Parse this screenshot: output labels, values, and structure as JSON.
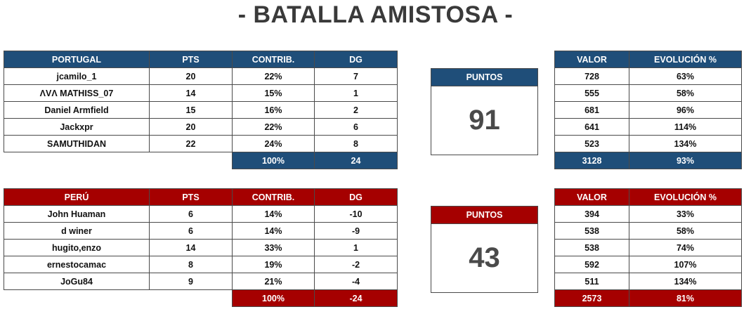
{
  "title": "- BATALLA AMISTOSA -",
  "colors": {
    "portugal": "#1f4e79",
    "peru": "#a50000"
  },
  "portugal": {
    "headers": [
      "PORTUGAL",
      "PTS",
      "CONTRIB.",
      "DG"
    ],
    "rows": [
      [
        "jcamilo_1",
        "20",
        "22%",
        "7"
      ],
      [
        "ΛVΛ MATHISS_07",
        "14",
        "15%",
        "1"
      ],
      [
        "Daniel Armfield",
        "15",
        "16%",
        "2"
      ],
      [
        "Jackxpr",
        "20",
        "22%",
        "6"
      ],
      [
        "SAMUTHIDAN",
        "22",
        "24%",
        "8"
      ]
    ],
    "totals": [
      "100%",
      "24"
    ],
    "points_label": "PUNTOS",
    "points": "91",
    "stats_headers": [
      "VALOR",
      "EVOLUCIÓN %"
    ],
    "stats_rows": [
      [
        "728",
        "63%"
      ],
      [
        "555",
        "58%"
      ],
      [
        "681",
        "96%"
      ],
      [
        "641",
        "114%"
      ],
      [
        "523",
        "134%"
      ]
    ],
    "stats_totals": [
      "3128",
      "93%"
    ]
  },
  "peru": {
    "headers": [
      "PERÚ",
      "PTS",
      "CONTRIB.",
      "DG"
    ],
    "rows": [
      [
        "John Huaman",
        "6",
        "14%",
        "-10"
      ],
      [
        "d winer",
        "6",
        "14%",
        "-9"
      ],
      [
        "hugito,enzo",
        "14",
        "33%",
        "1"
      ],
      [
        "ernestocamac",
        "8",
        "19%",
        "-2"
      ],
      [
        "JoGu84",
        "9",
        "21%",
        "-4"
      ]
    ],
    "totals": [
      "100%",
      "-24"
    ],
    "points_label": "PUNTOS",
    "points": "43",
    "stats_headers": [
      "VALOR",
      "EVOLUCIÓN %"
    ],
    "stats_rows": [
      [
        "394",
        "33%"
      ],
      [
        "538",
        "58%"
      ],
      [
        "538",
        "74%"
      ],
      [
        "592",
        "107%"
      ],
      [
        "511",
        "134%"
      ]
    ],
    "stats_totals": [
      "2573",
      "81%"
    ]
  }
}
